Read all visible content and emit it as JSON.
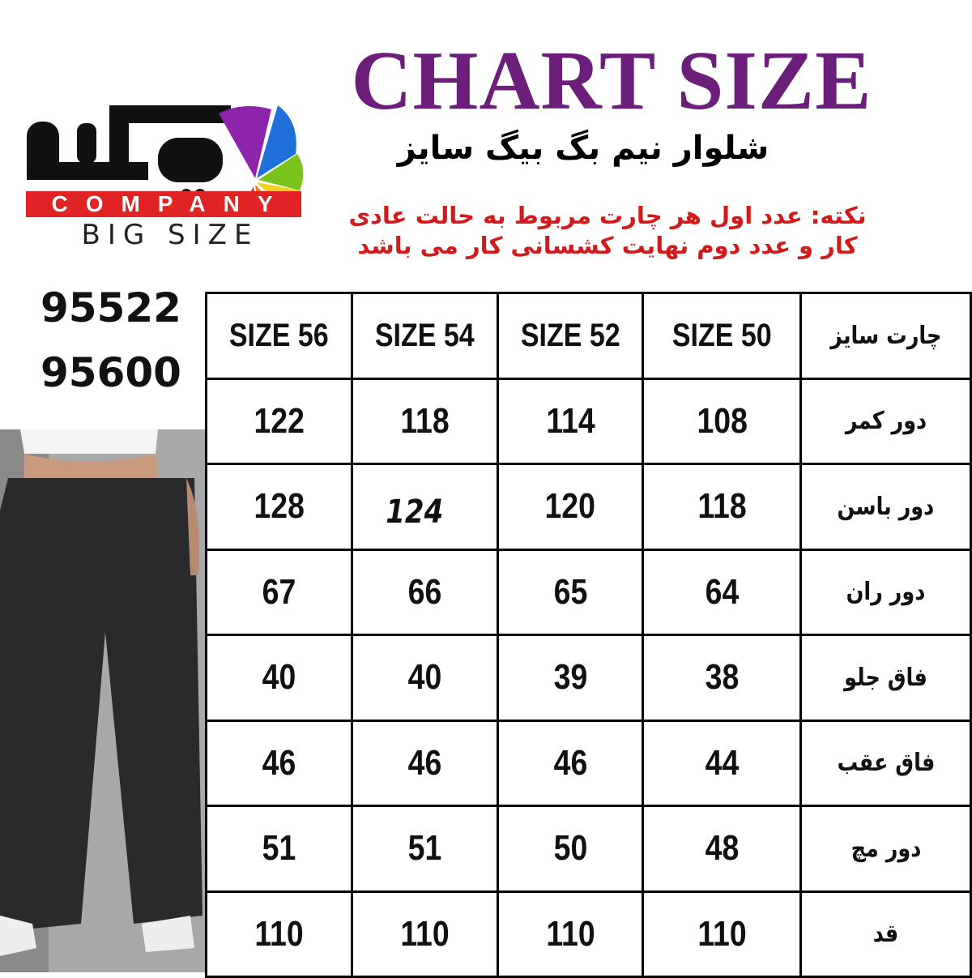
{
  "header": {
    "title": "CHART SIZE",
    "subtitle": "شلوار نیم بگ بیگ سایز",
    "note_line1": "نکته: عدد اول هر چارت مربوط به حالت عادی",
    "note_line2": "کار و عدد دوم نهایت کشسانی کار می باشد"
  },
  "logo": {
    "company": "COMPANY",
    "tagline": "BIG SIZE",
    "colors": [
      "#8e24aa",
      "#1e6fd9",
      "#7ac31c",
      "#f2d21b",
      "#f07f12",
      "#e02424"
    ]
  },
  "product_codes": [
    "95522",
    "95600"
  ],
  "table": {
    "headers": [
      "SIZE 56",
      "SIZE 54",
      "SIZE 52",
      "SIZE 50",
      "چارت سایز"
    ],
    "rows": [
      {
        "label": "دور کمر",
        "values": [
          "122",
          "118",
          "114",
          "108"
        ]
      },
      {
        "label": "دور باسن",
        "values": [
          "128",
          "124",
          "120",
          "118"
        ]
      },
      {
        "label": "دور ران",
        "values": [
          "67",
          "66",
          "65",
          "64"
        ]
      },
      {
        "label": "فاق جلو",
        "values": [
          "40",
          "40",
          "39",
          "38"
        ]
      },
      {
        "label": "فاق عقب",
        "values": [
          "46",
          "46",
          "46",
          "44"
        ]
      },
      {
        "label": "دور مچ",
        "values": [
          "51",
          "51",
          "50",
          "48"
        ]
      },
      {
        "label": "قد",
        "values": [
          "110",
          "110",
          "110",
          "110"
        ]
      }
    ]
  }
}
